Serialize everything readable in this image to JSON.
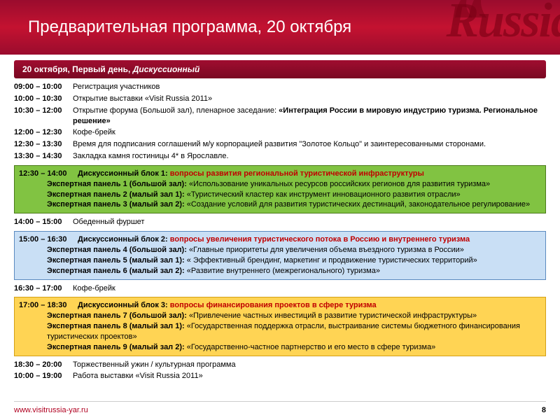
{
  "header": {
    "title": "Предварительная программа, 20 октября",
    "bg_text": "Russia"
  },
  "day_bar": {
    "prefix": "20 октября, Первый день, ",
    "suffix": "Дискуссионный"
  },
  "schedule_pre": [
    {
      "time": "09:00 – 10:00",
      "text": "Регистрация участников"
    },
    {
      "time": "10:00 – 10:30",
      "text": "Открытие выставки «Visit Russia 2011»"
    },
    {
      "time": "10:30 – 12:00",
      "text": "Открытие форума (Большой зал), пленарное заседание: ",
      "bold": "«Интеграция России в мировую индустрию туризма. Региональное решение»"
    },
    {
      "time": "12:00 – 12:30",
      "text": "Кофе-брейк"
    },
    {
      "time": "12:30 – 13:30",
      "text": "Время для подписания соглашений м/у корпорацией развития \"Золотое Кольцо\" и заинтересованными сторонами."
    },
    {
      "time": "13:30 – 14:30",
      "text": "Закладка камня гостиницы 4* в Ярославле."
    }
  ],
  "block1": {
    "time": "12:30 – 14:00",
    "title": "Дискуссионный блок 1: ",
    "topic": "вопросы развития региональной туристической инфраструктуры",
    "panels": [
      {
        "label": "Экспертная панель 1 (большой зал): ",
        "text": "«Использование уникальных ресурсов российских регионов для развития туризма»"
      },
      {
        "label": "Экспертная панель 2 (малый зал 1): ",
        "text": "«Туристический кластер как инструмент инновационного развития отрасли»"
      },
      {
        "label": "Экспертная панель 3 (малый зал 2): ",
        "text": "«Создание условий для развития туристических дестинаций, законодательное регулирование»"
      }
    ],
    "bg": "#81c342",
    "border": "#4a7a1a"
  },
  "mid1": [
    {
      "time": "14:00 – 15:00",
      "text": "Обеденный фуршет"
    }
  ],
  "block2": {
    "time": "15:00 – 16:30",
    "title": "Дискуссионный блок 2: ",
    "topic": "вопросы увеличения туристического потока в Россию и внутреннего туризма",
    "panels": [
      {
        "label": "Экспертная панель 4 (большой зал): ",
        "text": "«Главные приоритеты для увеличения объема въездного туризма в России»"
      },
      {
        "label": "Экспертная панель 5 (малый зал 1): ",
        "text": "« Эффективный брендинг, маркетинг и продвижение туристических территорий»"
      },
      {
        "label": "Экспертная панель 6 (малый зал 2): ",
        "text": "«Развитие внутреннего (межрегионального) туризма»"
      }
    ],
    "bg": "#c9dff5",
    "border": "#5a8ac0"
  },
  "mid2": [
    {
      "time": "16:30 – 17:00",
      "text": "Кофе-брейк"
    }
  ],
  "block3": {
    "time": "17:00 – 18:30",
    "title": "Дискуссионный блок 3: ",
    "topic": "вопросы финансирования проектов в сфере туризма",
    "panels": [
      {
        "label": "Экспертная панель 7 (большой зал): ",
        "text": "«Привлечение частных инвестиций в развитие туристической инфраструктуры»"
      },
      {
        "label": "Экспертная панель 8 (малый зал 1): ",
        "text": "«Государственная поддержка отрасли, выстраивание системы бюджетного финансирования туристических проектов»"
      },
      {
        "label": "Экспертная панель 9 (малый зал 2): ",
        "text": "«Государственно-частное партнерство и его место в сфере туризма»"
      }
    ],
    "bg": "#ffd454",
    "border": "#d4a017"
  },
  "schedule_post": [
    {
      "time": "18:30 – 20:00",
      "text": "Торжественный ужин / культурная программа"
    },
    {
      "time": "10:00 – 19:00",
      "text": "Работа выставки «Visit Russia 2011»"
    }
  ],
  "footer": {
    "url": "www.visitrussia-yar.ru",
    "page": "8"
  }
}
